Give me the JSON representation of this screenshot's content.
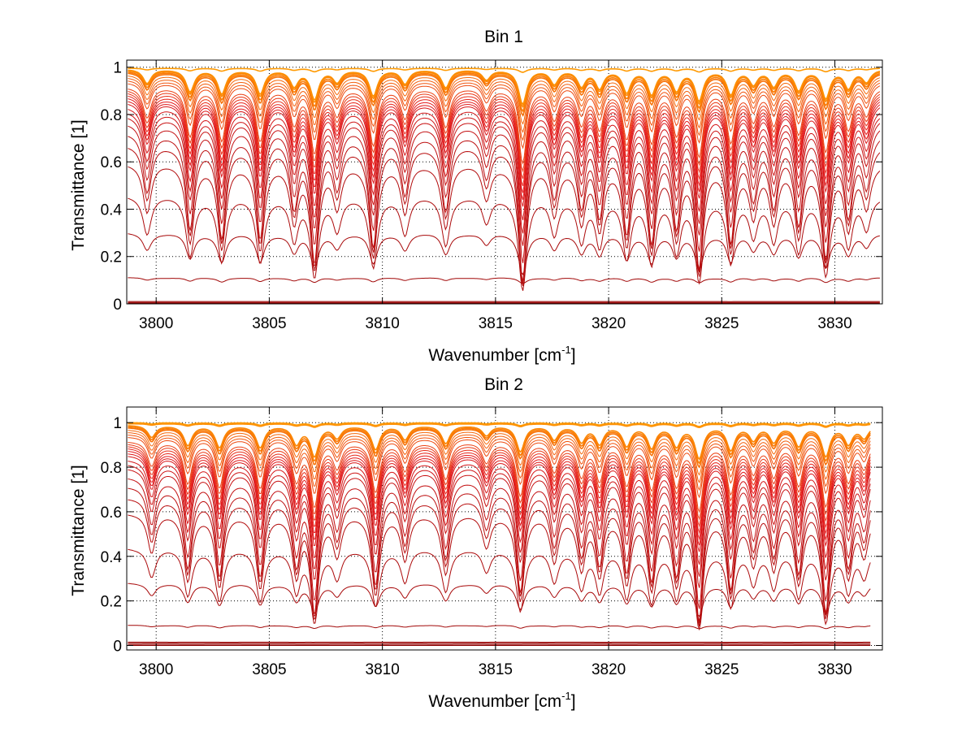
{
  "chart_data": [
    {
      "type": "line",
      "title": "Bin 1",
      "xlabel_main": "Wavenumber [cm",
      "xlabel_sup": "-1",
      "xlabel_tail": "]",
      "ylabel": "Transmittance [1]",
      "xlim": [
        3798.7,
        3832.1
      ],
      "ylim": [
        0,
        1.03
      ],
      "xticks": [
        3800,
        3805,
        3810,
        3815,
        3820,
        3825,
        3830
      ],
      "xtick_labels": [
        "3800",
        "3805",
        "3810",
        "3815",
        "3820",
        "3825",
        "3830"
      ],
      "yticks": [
        0,
        0.2,
        0.4,
        0.6,
        0.8,
        1
      ],
      "ytick_labels": [
        "0",
        "0.2",
        "0.4",
        "0.6",
        "0.8",
        "1"
      ],
      "grid": true,
      "x_end": 3832.0,
      "line_count": 30,
      "line_baselines": [
        0.0,
        0.003,
        0.006,
        0.01,
        0.11,
        0.3,
        0.46,
        0.6,
        0.68,
        0.73,
        0.77,
        0.8,
        0.82,
        0.84,
        0.86,
        0.87,
        0.88,
        0.89,
        0.9,
        0.91,
        0.92,
        0.94,
        0.95,
        0.96,
        0.97,
        0.98,
        0.985,
        0.99,
        0.993,
        0.996
      ],
      "absorption_line_centers": [
        3799.6,
        3801.5,
        3802.9,
        3804.6,
        3806.1,
        3807.0,
        3808.0,
        3809.6,
        3811.0,
        3812.8,
        3814.6,
        3816.2,
        3817.6,
        3818.8,
        3819.6,
        3820.8,
        3821.9,
        3823.0,
        3824.0,
        3825.4,
        3826.4,
        3827.3,
        3828.4,
        3829.6,
        3830.6,
        3831.4
      ],
      "absorption_line_strengths": [
        0.35,
        0.55,
        0.6,
        0.6,
        0.4,
        0.72,
        0.3,
        0.65,
        0.35,
        0.45,
        0.25,
        0.85,
        0.35,
        0.4,
        0.45,
        0.55,
        0.6,
        0.5,
        0.75,
        0.6,
        0.35,
        0.4,
        0.5,
        0.7,
        0.45,
        0.3
      ]
    },
    {
      "type": "line",
      "title": "Bin 2",
      "xlabel_main": "Wavenumber [cm",
      "xlabel_sup": "-1",
      "xlabel_tail": "]",
      "ylabel": "Transmittance [1]",
      "xlim": [
        3798.7,
        3832.1
      ],
      "ylim": [
        -0.02,
        1.07
      ],
      "xticks": [
        3800,
        3805,
        3810,
        3815,
        3820,
        3825,
        3830
      ],
      "xtick_labels": [
        "3800",
        "3805",
        "3810",
        "3815",
        "3820",
        "3825",
        "3830"
      ],
      "yticks": [
        0,
        0.2,
        0.4,
        0.6,
        0.8,
        1
      ],
      "ytick_labels": [
        "0",
        "0.2",
        "0.4",
        "0.6",
        "0.8",
        "1"
      ],
      "grid": true,
      "x_end": 3831.6,
      "line_count": 30,
      "line_baselines": [
        0.0,
        0.005,
        0.01,
        0.015,
        0.09,
        0.28,
        0.44,
        0.6,
        0.67,
        0.72,
        0.76,
        0.8,
        0.82,
        0.84,
        0.86,
        0.87,
        0.88,
        0.89,
        0.9,
        0.91,
        0.92,
        0.94,
        0.95,
        0.96,
        0.97,
        0.98,
        0.985,
        0.99,
        0.995,
        1.0
      ],
      "absorption_line_centers": [
        3799.8,
        3801.4,
        3802.8,
        3804.6,
        3806.2,
        3807.0,
        3808.0,
        3809.7,
        3811.0,
        3812.8,
        3814.6,
        3816.1,
        3817.6,
        3818.8,
        3819.6,
        3820.8,
        3821.9,
        3823.0,
        3824.0,
        3825.4,
        3826.4,
        3827.3,
        3828.4,
        3829.6,
        3830.6,
        3831.3
      ],
      "absorption_line_strengths": [
        0.3,
        0.5,
        0.55,
        0.55,
        0.45,
        0.75,
        0.3,
        0.6,
        0.35,
        0.45,
        0.25,
        0.65,
        0.35,
        0.4,
        0.45,
        0.5,
        0.55,
        0.5,
        0.8,
        0.6,
        0.35,
        0.4,
        0.5,
        0.75,
        0.45,
        0.3
      ]
    }
  ],
  "colors": {
    "line_low": "#8b0000",
    "line_mid": "#e41a1c",
    "line_high": "#ff9900",
    "grid": "#000000",
    "axes": "#000000",
    "background": "#ffffff"
  }
}
